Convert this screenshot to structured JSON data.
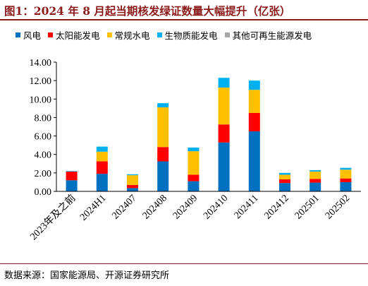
{
  "title": "图1：2024 年 8 月起当期核发绿证数量大幅提升（亿张）",
  "source": "数据来源：国家能源局、开源证券研究所",
  "chart_data": {
    "type": "bar",
    "stacked": true,
    "categories": [
      "2023年及之前",
      "2024H1",
      "202407",
      "202408",
      "202409",
      "202410",
      "202411",
      "202412",
      "202501",
      "202502"
    ],
    "series": [
      {
        "name": "风电",
        "color": "#0070C0",
        "values": [
          1.2,
          1.9,
          0.35,
          3.25,
          1.1,
          5.3,
          6.5,
          0.9,
          0.95,
          1.0
        ]
      },
      {
        "name": "太阳能发电",
        "color": "#FF0000",
        "values": [
          0.95,
          1.35,
          0.35,
          1.55,
          0.7,
          1.95,
          2.0,
          0.4,
          0.4,
          0.4
        ]
      },
      {
        "name": "常规水电",
        "color": "#FFC000",
        "values": [
          0.0,
          1.05,
          1.05,
          4.3,
          2.55,
          4.0,
          2.5,
          0.5,
          0.8,
          0.95
        ]
      },
      {
        "name": "生物质能发电",
        "color": "#00B0F0",
        "values": [
          0.05,
          0.55,
          0.1,
          0.45,
          0.4,
          1.05,
          1.0,
          0.2,
          0.15,
          0.2
        ]
      },
      {
        "name": "其他可再生能源发电",
        "color": "#A6A6A6",
        "values": [
          0.0,
          0.0,
          0.0,
          0.0,
          0.0,
          0.0,
          0.0,
          0.0,
          0.0,
          0.0
        ]
      }
    ],
    "ylim": [
      0,
      14
    ],
    "yticks": [
      "0.00",
      "2.00",
      "4.00",
      "6.00",
      "8.00",
      "10.00",
      "12.00",
      "14.00"
    ],
    "grid": false,
    "legend_position": "top"
  }
}
